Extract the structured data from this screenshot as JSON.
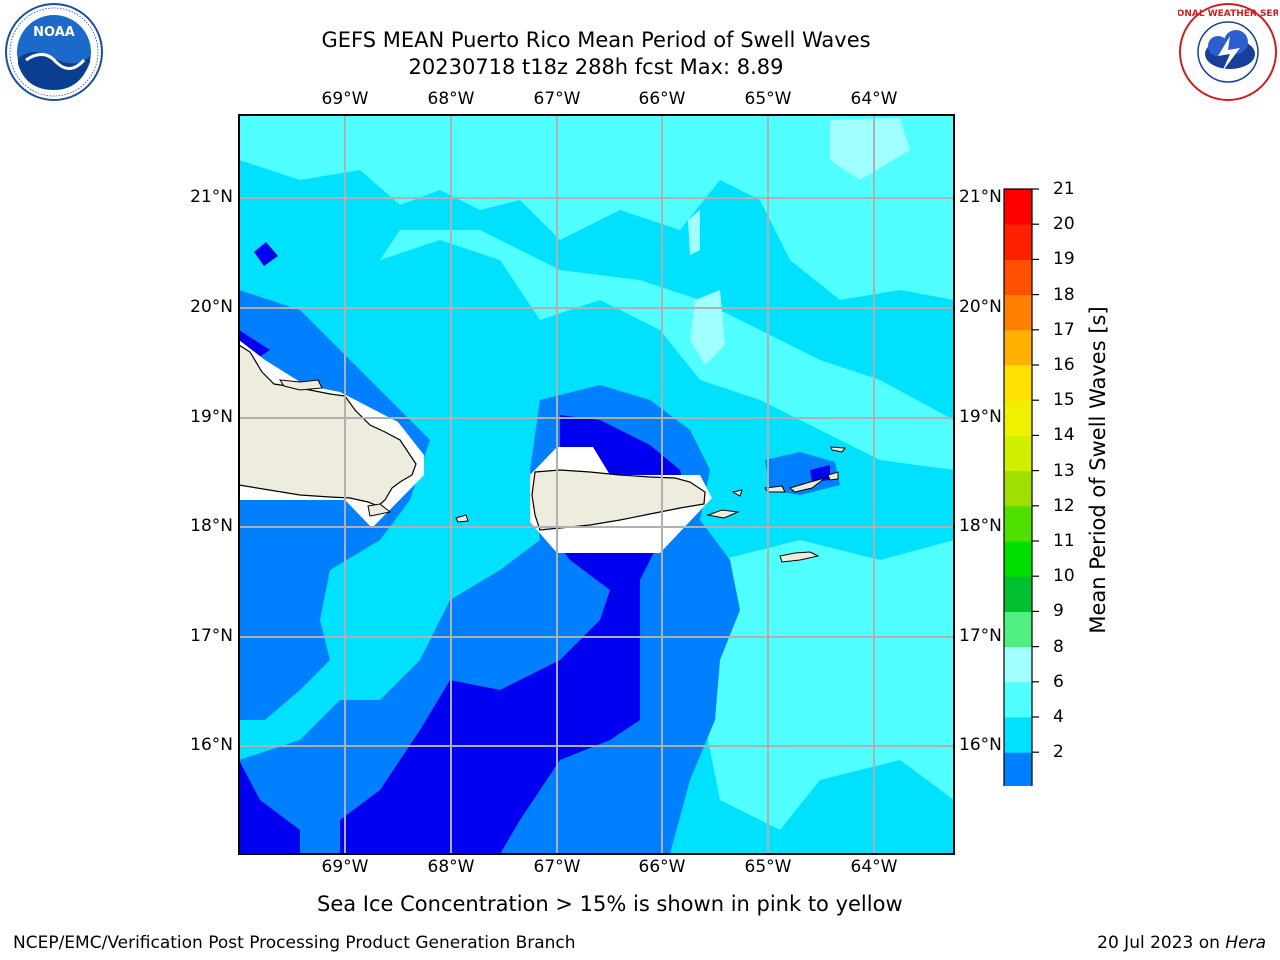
{
  "title": {
    "line1": "GEFS MEAN Puerto Rico Mean Period of Swell Waves",
    "line2": "20230718 t18z 288h fcst   Max: 8.89"
  },
  "axes": {
    "lon_labels": [
      "69°W",
      "68°W",
      "67°W",
      "66°W",
      "65°W",
      "64°W"
    ],
    "lat_labels": [
      "21°N",
      "20°N",
      "19°N",
      "18°N",
      "17°N",
      "16°N"
    ]
  },
  "colorbar": {
    "label": "Mean Period of Swell Waves [s]",
    "ticks": [
      "21",
      "20",
      "19",
      "18",
      "17",
      "16",
      "15",
      "14",
      "13",
      "12",
      "11",
      "10",
      "9",
      "8",
      "6",
      "4",
      "2"
    ],
    "colors": [
      "#0000f0",
      "#0080ff",
      "#00e0ff",
      "#50ffff",
      "#a0ffff",
      "#50f080",
      "#00c030",
      "#00e000",
      "#50e000",
      "#a0e000",
      "#d0f000",
      "#f0f000",
      "#ffe000",
      "#ffb000",
      "#ff8000",
      "#ff5000",
      "#ff2000",
      "#ff0000"
    ]
  },
  "caption": "Sea Ice Concentration > 15% is shown in pink to yellow",
  "footer": {
    "left": "NCEP/EMC/Verification Post Processing Product Generation Branch",
    "right_date": "20 Jul 2023 on ",
    "right_host": "Hera"
  },
  "logos": {
    "noaa_text": "NOAA",
    "nws_text": "NATIONAL WEATHER SERVICE"
  }
}
